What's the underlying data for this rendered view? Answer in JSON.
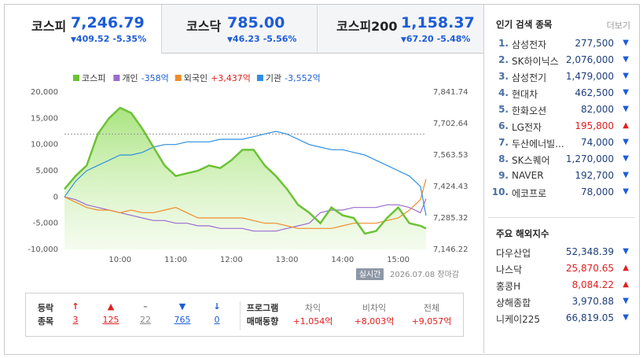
{
  "tabs": [
    {
      "name": "코스피",
      "value": "7,246.79",
      "arrow": "▼",
      "change": "409.52",
      "pct": "-5.35%"
    },
    {
      "name": "코스닥",
      "value": "785.00",
      "arrow": "▼",
      "change": "46.23",
      "pct": "-5.56%"
    },
    {
      "name": "코스피200",
      "value": "1,158.37",
      "arrow": "▼",
      "change": "67.20",
      "pct": "-5.48%"
    }
  ],
  "chart_data": {
    "type": "line",
    "x": [
      9.0,
      9.2,
      9.4,
      9.6,
      9.8,
      10.0,
      10.2,
      10.4,
      10.6,
      10.8,
      11.0,
      11.2,
      11.4,
      11.6,
      11.8,
      12.0,
      12.2,
      12.4,
      12.6,
      12.8,
      13.0,
      13.2,
      13.4,
      13.6,
      13.8,
      14.0,
      14.2,
      14.4,
      14.6,
      14.8,
      15.0,
      15.2,
      15.4,
      15.5
    ],
    "xlim": [
      9,
      15.5
    ],
    "xticks": [
      {
        "value": 10,
        "label": "10:00"
      },
      {
        "value": 11,
        "label": "11:00"
      },
      {
        "value": 12,
        "label": "12:00"
      },
      {
        "value": 13,
        "label": "13:00"
      },
      {
        "value": 14,
        "label": "14:00"
      },
      {
        "value": 15,
        "label": "15:00"
      }
    ],
    "ylim": [
      -10000,
      20000
    ],
    "yticks": [
      {
        "value": 20000,
        "label": "20,000"
      },
      {
        "value": 15000,
        "label": "15,000"
      },
      {
        "value": 10000,
        "label": "10,000"
      },
      {
        "value": 5000,
        "label": "5,000"
      },
      0,
      {
        "value": -5000,
        "label": "-5,000"
      },
      {
        "value": -10000,
        "label": "-10,000"
      }
    ],
    "y2lim": [
      7146.22,
      7841.74
    ],
    "y2ticks": [
      {
        "value": 7841.74,
        "label": "7,841.74"
      },
      {
        "value": 7702.64,
        "label": "7,702.64"
      },
      {
        "value": 7563.53,
        "label": "7,563.53"
      },
      {
        "value": 7424.43,
        "label": "7,424.43"
      },
      {
        "value": 7285.32,
        "label": "7,285.32"
      },
      {
        "value": 7146.22,
        "label": "7,146.22"
      }
    ],
    "prev_close_line": 7656.31,
    "grid": false,
    "series": [
      {
        "name": "코스피",
        "color": "#6cc235",
        "axis": "y2",
        "area": true,
        "values": [
          7412.84,
          7470.8,
          7517.16,
          7656.27,
          7725.82,
          7772.19,
          7749.0,
          7679.45,
          7598.31,
          7517.16,
          7470.8,
          7482.39,
          7493.98,
          7517.16,
          7505.57,
          7540.35,
          7586.72,
          7586.72,
          7517.16,
          7470.8,
          7412.84,
          7343.28,
          7308.51,
          7262.14,
          7331.69,
          7296.92,
          7285.32,
          7215.77,
          7227.36,
          7285.32,
          7331.69,
          7262.14,
          7250.55,
          7238.96
        ]
      },
      {
        "name": "개인",
        "legend_value": "-358억",
        "legend_value_color": "#1c5cd8",
        "color": "#9b6ccf",
        "values": [
          0,
          -500,
          -1500,
          -2000,
          -2500,
          -3000,
          -3500,
          -4000,
          -4500,
          -4500,
          -5000,
          -5000,
          -5500,
          -5500,
          -6000,
          -6000,
          -6000,
          -6500,
          -6500,
          -6500,
          -6000,
          -5500,
          -5000,
          -3000,
          -2500,
          -2500,
          -2000,
          -2000,
          -2000,
          -1500,
          -1500,
          -2000,
          -3000,
          -358
        ]
      },
      {
        "name": "외국인",
        "legend_value": "+3,437억",
        "legend_value_color": "#e02020",
        "color": "#f08c2a",
        "values": [
          0,
          -1000,
          -2000,
          -2500,
          -2500,
          -3000,
          -2500,
          -3000,
          -3000,
          -2500,
          -2000,
          -3000,
          -4000,
          -4000,
          -4000,
          -4000,
          -4000,
          -4500,
          -5000,
          -5000,
          -5500,
          -6000,
          -6000,
          -6000,
          -6000,
          -5500,
          -5000,
          -5000,
          -5000,
          -4500,
          -4000,
          -2500,
          -500,
          3437
        ]
      },
      {
        "name": "기관",
        "legend_value": "-3,552억",
        "legend_value_color": "#1c5cd8",
        "color": "#2f8fe0",
        "values": [
          0,
          3000,
          5000,
          6000,
          7000,
          8000,
          8000,
          8500,
          9500,
          10000,
          10000,
          10500,
          10500,
          10500,
          11000,
          11000,
          11000,
          11500,
          12000,
          12500,
          12000,
          11000,
          10000,
          9500,
          9000,
          9000,
          8500,
          8000,
          7000,
          6000,
          5000,
          4000,
          2000,
          -3552
        ]
      }
    ],
    "badge": "실시간",
    "date_note": "2026.07.08 장마감"
  },
  "market_stats": {
    "title_lines": [
      "등락",
      "종목"
    ],
    "items": [
      {
        "symbol": "↑",
        "count": 3
      },
      {
        "symbol": "▲",
        "count": 125
      },
      {
        "symbol": "–",
        "count": 22
      },
      {
        "symbol": "▼",
        "count": 765
      },
      {
        "symbol": "↓",
        "count": 0
      }
    ]
  },
  "program_trading": {
    "title_lines": [
      "프로그램",
      "매매동향"
    ],
    "items": [
      {
        "label": "차익",
        "value": "+1,054억"
      },
      {
        "label": "비차익",
        "value": "+8,003억"
      },
      {
        "label": "전체",
        "value": "+9,057억"
      }
    ]
  },
  "popular": {
    "title": "인기 검색 종목",
    "more": "더보기",
    "items": [
      {
        "rank": "1.",
        "name": "삼성전자",
        "price": "277,500",
        "arrow": "▼"
      },
      {
        "rank": "2.",
        "name": "SK하이닉스",
        "price": "2,076,000",
        "arrow": "▼"
      },
      {
        "rank": "3.",
        "name": "삼성전기",
        "price": "1,479,000",
        "arrow": "▼"
      },
      {
        "rank": "4.",
        "name": "현대차",
        "price": "462,500",
        "arrow": "▼"
      },
      {
        "rank": "5.",
        "name": "한화오션",
        "price": "82,000",
        "arrow": "▼"
      },
      {
        "rank": "6.",
        "name": "LG전자",
        "price": "195,800",
        "arrow": "▲"
      },
      {
        "rank": "7.",
        "name": "두산에너빌...",
        "price": "74,000",
        "arrow": "▼"
      },
      {
        "rank": "8.",
        "name": "SK스퀘어",
        "price": "1,270,000",
        "arrow": "▼"
      },
      {
        "rank": "9.",
        "name": "NAVER",
        "price": "192,700",
        "arrow": "▼"
      },
      {
        "rank": "10.",
        "name": "에코프로",
        "price": "78,000",
        "arrow": "▼"
      }
    ]
  },
  "overseas": {
    "title": "주요 해외지수",
    "items": [
      {
        "name": "다우산업",
        "value": "52,348.39",
        "arrow": "▼"
      },
      {
        "name": "나스닥",
        "value": "25,870.65",
        "arrow": "▲"
      },
      {
        "name": "홍콩H",
        "value": "8,084.22",
        "arrow": "▲"
      },
      {
        "name": "상해종합",
        "value": "3,970.88",
        "arrow": "▼"
      },
      {
        "name": "니케이225",
        "value": "66,819.05",
        "arrow": "▼"
      }
    ]
  }
}
